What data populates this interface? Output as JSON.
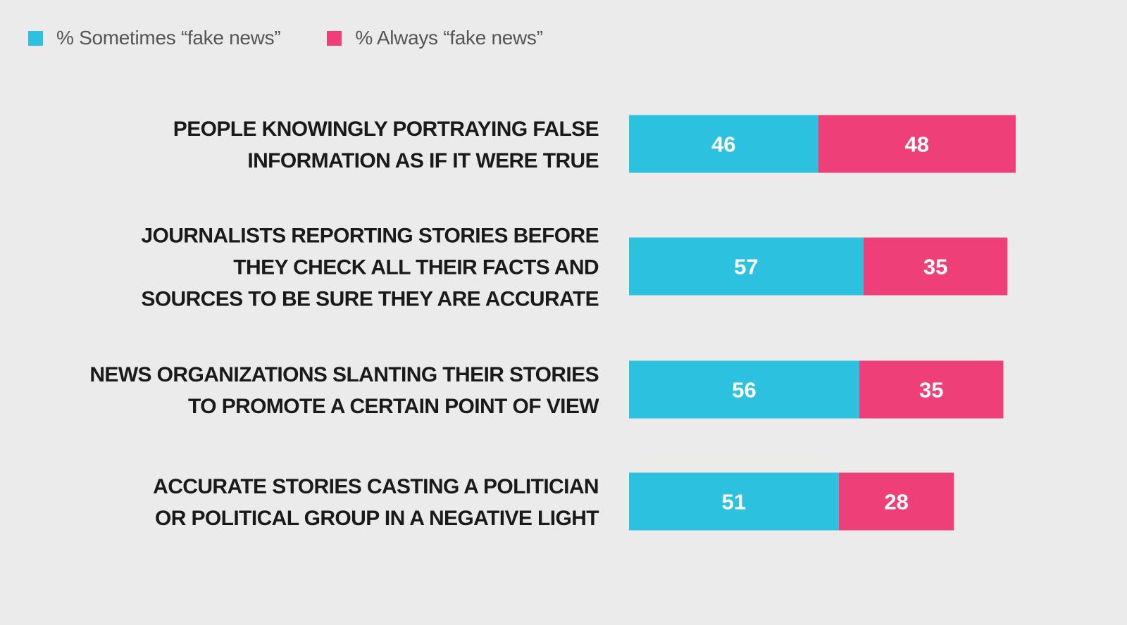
{
  "chart_data": {
    "type": "bar",
    "orientation": "horizontal",
    "stacked": true,
    "legend_position": "top-left",
    "grid": false,
    "categories": [
      [
        "PEOPLE KNOWINGLY PORTRAYING FALSE",
        "INFORMATION AS IF IT WERE TRUE"
      ],
      [
        "JOURNALISTS REPORTING STORIES BEFORE",
        "THEY CHECK ALL THEIR FACTS AND",
        "SOURCES TO BE SURE THEY ARE ACCURATE"
      ],
      [
        "NEWS ORGANIZATIONS SLANTING THEIR STORIES",
        "TO PROMOTE A CERTAIN POINT OF VIEW"
      ],
      [
        "ACCURATE STORIES CASTING A POLITICIAN",
        "OR POLITICAL GROUP IN A NEGATIVE LIGHT"
      ]
    ],
    "series": [
      {
        "name": "% Sometimes “fake news”",
        "color": "#2bc1df",
        "values": [
          46,
          57,
          56,
          51
        ]
      },
      {
        "name": "% Always “fake news”",
        "color": "#ef3f78",
        "values": [
          48,
          35,
          35,
          28
        ]
      }
    ],
    "xlim": [
      0,
      100
    ]
  }
}
